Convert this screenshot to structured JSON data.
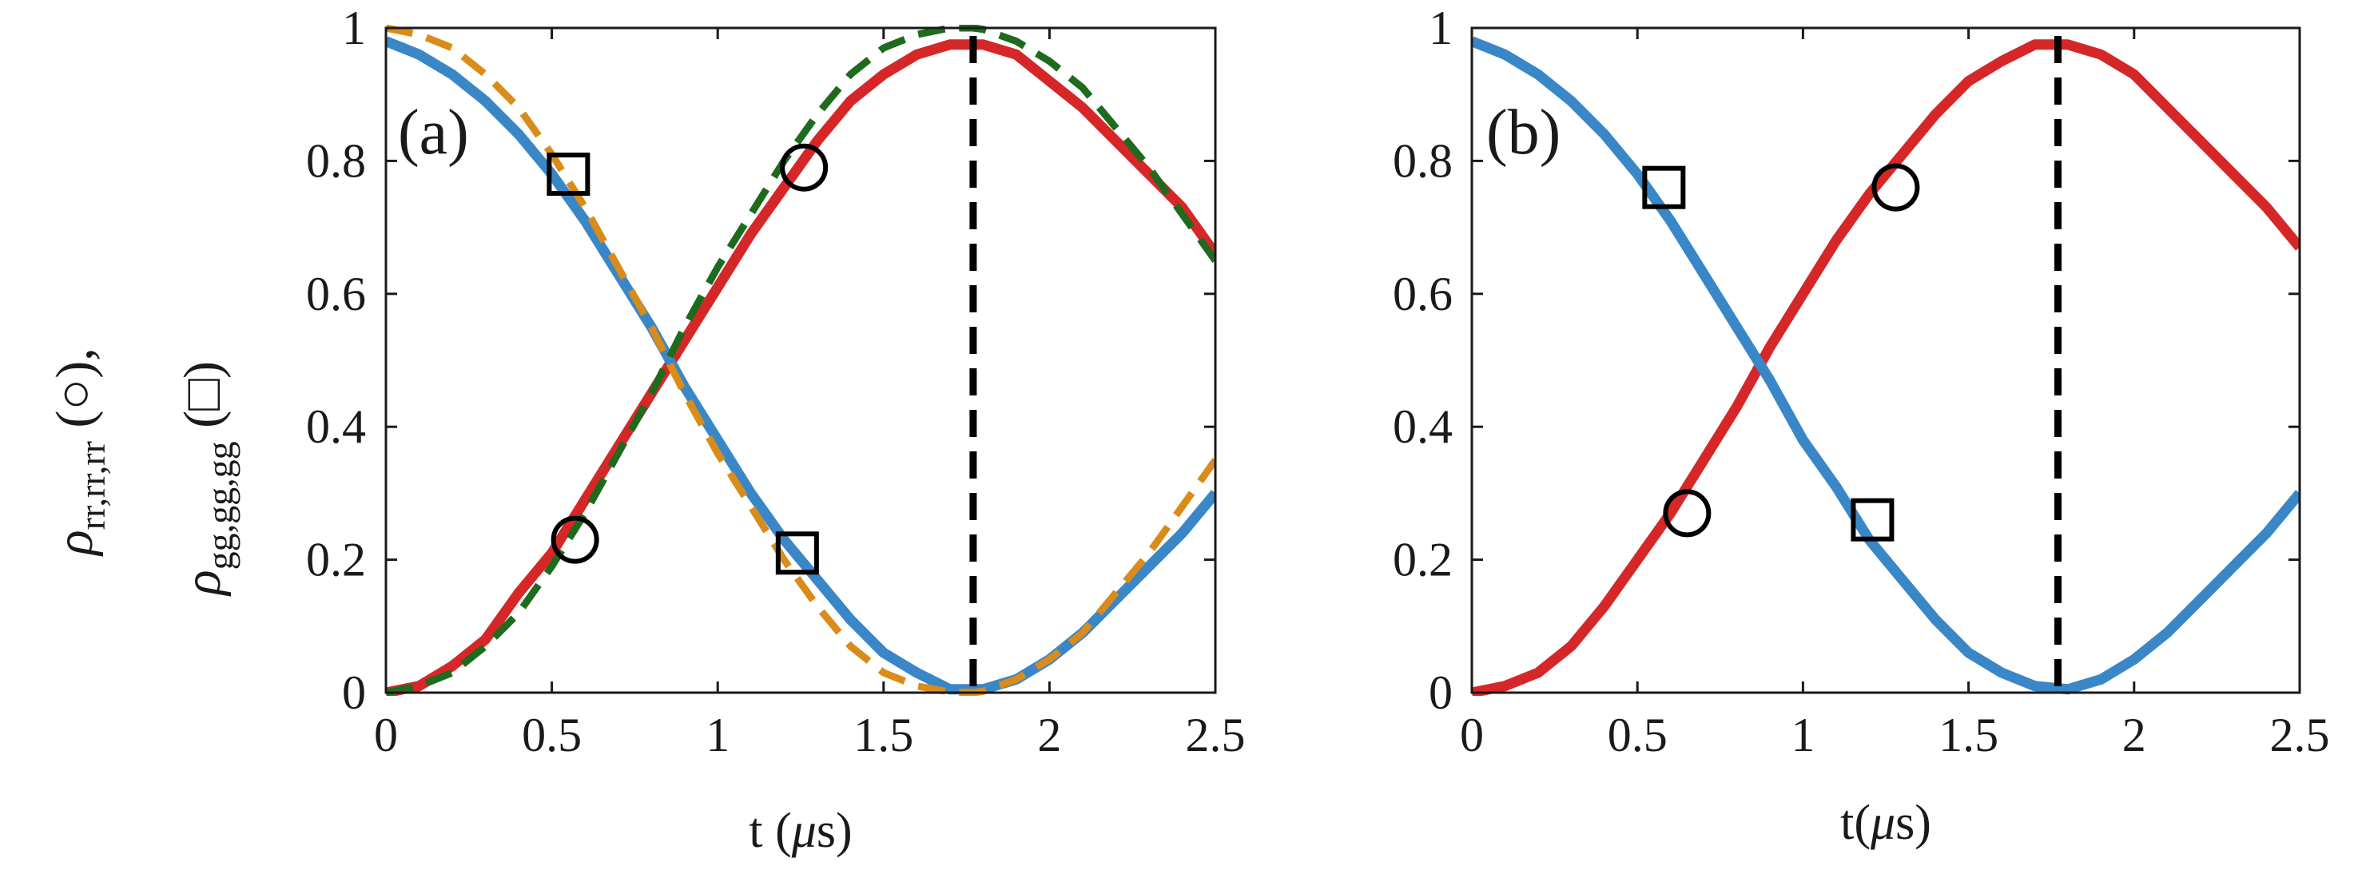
{
  "chart_data": [
    {
      "type": "line",
      "panel_label": "(a)",
      "xlabel_prefix": "t (",
      "xlabel_mu": "μ",
      "xlabel_suffix": "s)",
      "xlim": [
        0,
        2.5
      ],
      "ylim": [
        0,
        1
      ],
      "xticks": [
        "0",
        "0.5",
        "1",
        "1.5",
        "2",
        "2.5"
      ],
      "yticks": [
        "0",
        "0.2",
        "0.4",
        "0.6",
        "0.8",
        "1"
      ],
      "vline_x": 1.77,
      "series": [
        {
          "name": "rho_rr_rr data",
          "style": "thick",
          "color": "#d62728",
          "x": [
            0,
            0.1,
            0.2,
            0.3,
            0.4,
            0.5,
            0.6,
            0.7,
            0.8,
            0.9,
            1.0,
            1.1,
            1.2,
            1.3,
            1.4,
            1.5,
            1.6,
            1.7,
            1.8,
            1.9,
            2.0,
            2.1,
            2.2,
            2.3,
            2.4,
            2.5
          ],
          "y": [
            0.0,
            0.01,
            0.04,
            0.08,
            0.15,
            0.21,
            0.29,
            0.37,
            0.45,
            0.53,
            0.61,
            0.69,
            0.76,
            0.83,
            0.89,
            0.93,
            0.96,
            0.975,
            0.975,
            0.96,
            0.92,
            0.88,
            0.83,
            0.78,
            0.73,
            0.66
          ]
        },
        {
          "name": "rho_gg_gg data",
          "style": "thick",
          "color": "#3a87c8",
          "x": [
            0,
            0.1,
            0.2,
            0.3,
            0.4,
            0.5,
            0.6,
            0.7,
            0.8,
            0.9,
            1.0,
            1.1,
            1.2,
            1.3,
            1.4,
            1.5,
            1.6,
            1.7,
            1.8,
            1.9,
            2.0,
            2.1,
            2.2,
            2.3,
            2.4,
            2.5
          ],
          "y": [
            0.98,
            0.96,
            0.93,
            0.89,
            0.84,
            0.78,
            0.71,
            0.63,
            0.55,
            0.46,
            0.38,
            0.3,
            0.23,
            0.17,
            0.11,
            0.06,
            0.03,
            0.005,
            0.005,
            0.02,
            0.05,
            0.09,
            0.14,
            0.19,
            0.24,
            0.3
          ]
        },
        {
          "name": "rho_rr_rr theory",
          "style": "dashed",
          "color": "#1e6b1e",
          "x": [
            0,
            0.1,
            0.2,
            0.3,
            0.4,
            0.5,
            0.6,
            0.7,
            0.8,
            0.9,
            1.0,
            1.1,
            1.2,
            1.3,
            1.4,
            1.5,
            1.6,
            1.7,
            1.77,
            1.8,
            1.9,
            2.0,
            2.1,
            2.2,
            2.3,
            2.4,
            2.5
          ],
          "y": [
            0.0,
            0.01,
            0.03,
            0.07,
            0.12,
            0.19,
            0.27,
            0.36,
            0.45,
            0.55,
            0.64,
            0.72,
            0.8,
            0.87,
            0.93,
            0.97,
            0.99,
            1.0,
            1.0,
            0.998,
            0.98,
            0.95,
            0.91,
            0.85,
            0.79,
            0.72,
            0.65
          ]
        },
        {
          "name": "rho_gg_gg theory",
          "style": "dashed",
          "color": "#d98c1a",
          "x": [
            0,
            0.1,
            0.2,
            0.3,
            0.4,
            0.5,
            0.6,
            0.7,
            0.8,
            0.9,
            1.0,
            1.1,
            1.2,
            1.3,
            1.4,
            1.5,
            1.6,
            1.7,
            1.77,
            1.8,
            1.9,
            2.0,
            2.1,
            2.2,
            2.3,
            2.4,
            2.5
          ],
          "y": [
            1.0,
            0.99,
            0.97,
            0.93,
            0.88,
            0.81,
            0.73,
            0.64,
            0.55,
            0.45,
            0.36,
            0.28,
            0.2,
            0.13,
            0.07,
            0.03,
            0.01,
            0.001,
            0.0,
            0.002,
            0.02,
            0.05,
            0.09,
            0.15,
            0.21,
            0.28,
            0.35
          ]
        }
      ],
      "markers": [
        {
          "shape": "square",
          "x": 0.55,
          "y": 0.78
        },
        {
          "shape": "circle",
          "x": 1.26,
          "y": 0.79
        },
        {
          "shape": "circle",
          "x": 0.57,
          "y": 0.23
        },
        {
          "shape": "square",
          "x": 1.24,
          "y": 0.21
        }
      ]
    },
    {
      "type": "line",
      "panel_label": "(b)",
      "xlabel_prefix": "t(",
      "xlabel_mu": "μ",
      "xlabel_suffix": "s)",
      "xlim": [
        0,
        2.5
      ],
      "ylim": [
        0,
        1
      ],
      "xticks": [
        "0",
        "0.5",
        "1",
        "1.5",
        "2",
        "2.5"
      ],
      "yticks": [
        "0",
        "0.2",
        "0.4",
        "0.6",
        "0.8",
        "1"
      ],
      "vline_x": 1.77,
      "series": [
        {
          "name": "rho_rr_rr",
          "style": "thick",
          "color": "#d62728",
          "x": [
            0,
            0.1,
            0.2,
            0.3,
            0.4,
            0.5,
            0.6,
            0.7,
            0.8,
            0.9,
            1.0,
            1.1,
            1.2,
            1.3,
            1.4,
            1.5,
            1.6,
            1.7,
            1.8,
            1.9,
            2.0,
            2.1,
            2.2,
            2.3,
            2.4,
            2.5
          ],
          "y": [
            0.0,
            0.01,
            0.03,
            0.07,
            0.13,
            0.2,
            0.27,
            0.35,
            0.43,
            0.52,
            0.6,
            0.68,
            0.75,
            0.81,
            0.87,
            0.92,
            0.95,
            0.975,
            0.975,
            0.96,
            0.93,
            0.88,
            0.83,
            0.78,
            0.73,
            0.67
          ]
        },
        {
          "name": "rho_gg_gg",
          "style": "thick",
          "color": "#3a87c8",
          "x": [
            0,
            0.1,
            0.2,
            0.3,
            0.4,
            0.5,
            0.6,
            0.7,
            0.8,
            0.9,
            1.0,
            1.1,
            1.2,
            1.3,
            1.4,
            1.5,
            1.6,
            1.7,
            1.8,
            1.9,
            2.0,
            2.1,
            2.2,
            2.3,
            2.4,
            2.5
          ],
          "y": [
            0.98,
            0.96,
            0.93,
            0.89,
            0.84,
            0.78,
            0.71,
            0.63,
            0.55,
            0.47,
            0.38,
            0.31,
            0.23,
            0.17,
            0.11,
            0.06,
            0.03,
            0.01,
            0.005,
            0.02,
            0.05,
            0.09,
            0.14,
            0.19,
            0.24,
            0.3
          ]
        }
      ],
      "markers": [
        {
          "shape": "square",
          "x": 0.58,
          "y": 0.76
        },
        {
          "shape": "circle",
          "x": 1.28,
          "y": 0.76
        },
        {
          "shape": "circle",
          "x": 0.65,
          "y": 0.27
        },
        {
          "shape": "square",
          "x": 1.21,
          "y": 0.26
        }
      ]
    }
  ],
  "y_axis_label": {
    "rho": "ρ",
    "rr_sub": "rr,rr,rr",
    "rr_marker": " (○),",
    "gg_sub": "gg,gg,gg",
    "gg_marker": " (□)"
  },
  "colors": {
    "axis": "#1a1a1a",
    "vline": "#000000",
    "marker": "#000000"
  }
}
